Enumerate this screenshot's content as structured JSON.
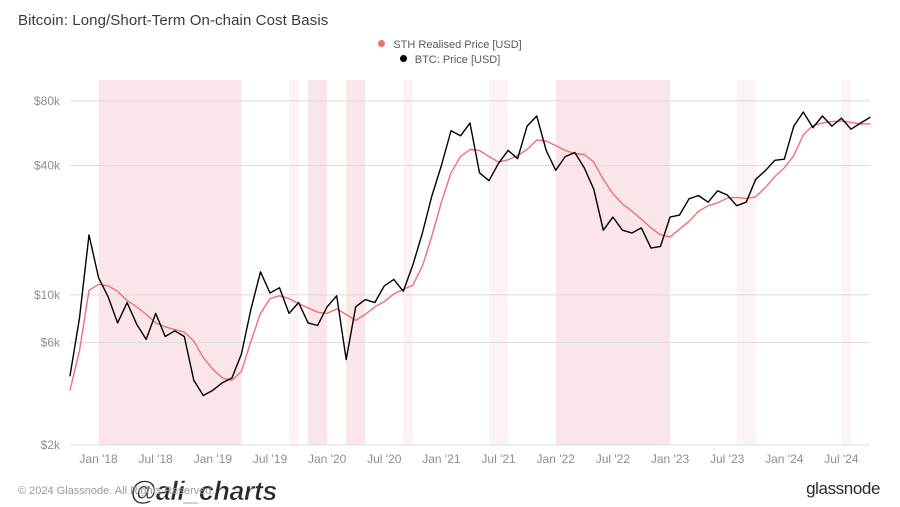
{
  "title": "Bitcoin: Long/Short-Term On-chain Cost Basis",
  "legend": {
    "sth": {
      "label": "STH Realised Price [USD]",
      "color": "#ef6f75"
    },
    "btc": {
      "label": "BTC: Price [USD]",
      "color": "#000000"
    }
  },
  "watermark": "@ali_charts",
  "footer_left": "© 2024 Glassnode. All Rights Reserved.",
  "footer_right": "glassnode",
  "chart": {
    "type": "line",
    "x_scale": "linear_time",
    "y_scale": "log",
    "background_color": "#ffffff",
    "grid_color": "#dcdcdc",
    "tick_label_color": "#8e8e8e",
    "title_fontsize": 15,
    "tick_fontsize": 12,
    "legend_fontsize": 11,
    "line_width": 1.4,
    "x_axis": {
      "domain": [
        "2017-10",
        "2024-10"
      ],
      "ticks": [
        {
          "t": "2018-01",
          "label": "Jan '18"
        },
        {
          "t": "2018-07",
          "label": "Jul '18"
        },
        {
          "t": "2019-01",
          "label": "Jan '19"
        },
        {
          "t": "2019-07",
          "label": "Jul '19"
        },
        {
          "t": "2020-01",
          "label": "Jan '20"
        },
        {
          "t": "2020-07",
          "label": "Jul '20"
        },
        {
          "t": "2021-01",
          "label": "Jan '21"
        },
        {
          "t": "2021-07",
          "label": "Jul '21"
        },
        {
          "t": "2022-01",
          "label": "Jan '22"
        },
        {
          "t": "2022-07",
          "label": "Jul '22"
        },
        {
          "t": "2023-01",
          "label": "Jan '23"
        },
        {
          "t": "2023-07",
          "label": "Jul '23"
        },
        {
          "t": "2024-01",
          "label": "Jan '24"
        },
        {
          "t": "2024-07",
          "label": "Jul '24"
        }
      ]
    },
    "y_axis": {
      "domain": [
        2000,
        100000
      ],
      "ticks": [
        {
          "v": 2000,
          "label": "$2k"
        },
        {
          "v": 6000,
          "label": "$6k"
        },
        {
          "v": 10000,
          "label": "$10k"
        },
        {
          "v": 40000,
          "label": "$40k"
        },
        {
          "v": 80000,
          "label": "$80k"
        }
      ]
    },
    "bands": [
      {
        "from": "2018-01",
        "to": "2019-04",
        "opacity": 0.22
      },
      {
        "from": "2019-09",
        "to": "2019-10",
        "opacity": 0.1
      },
      {
        "from": "2019-11",
        "to": "2020-01",
        "opacity": 0.22
      },
      {
        "from": "2020-03",
        "to": "2020-05",
        "opacity": 0.22
      },
      {
        "from": "2020-09",
        "to": "2020-10",
        "opacity": 0.1
      },
      {
        "from": "2021-06",
        "to": "2021-08",
        "opacity": 0.1
      },
      {
        "from": "2022-01",
        "to": "2023-01",
        "opacity": 0.22
      },
      {
        "from": "2023-08",
        "to": "2023-10",
        "opacity": 0.1
      },
      {
        "from": "2024-07",
        "to": "2024-08",
        "opacity": 0.1
      }
    ],
    "series": {
      "btc_price": {
        "label": "BTC: Price [USD]",
        "color": "#000000",
        "points": [
          [
            "2017-10",
            4200
          ],
          [
            "2017-11",
            7800
          ],
          [
            "2017-12",
            19000
          ],
          [
            "2018-01",
            12000
          ],
          [
            "2018-02",
            9800
          ],
          [
            "2018-03",
            7400
          ],
          [
            "2018-04",
            9200
          ],
          [
            "2018-05",
            7300
          ],
          [
            "2018-06",
            6200
          ],
          [
            "2018-07",
            8200
          ],
          [
            "2018-08",
            6400
          ],
          [
            "2018-09",
            6800
          ],
          [
            "2018-10",
            6400
          ],
          [
            "2018-11",
            4000
          ],
          [
            "2018-12",
            3400
          ],
          [
            "2019-01",
            3600
          ],
          [
            "2019-02",
            3900
          ],
          [
            "2019-03",
            4100
          ],
          [
            "2019-04",
            5300
          ],
          [
            "2019-05",
            8600
          ],
          [
            "2019-06",
            12800
          ],
          [
            "2019-07",
            10200
          ],
          [
            "2019-08",
            10800
          ],
          [
            "2019-09",
            8200
          ],
          [
            "2019-10",
            9200
          ],
          [
            "2019-11",
            7400
          ],
          [
            "2019-12",
            7200
          ],
          [
            "2020-01",
            8800
          ],
          [
            "2020-02",
            9900
          ],
          [
            "2020-03",
            5000
          ],
          [
            "2020-04",
            8800
          ],
          [
            "2020-05",
            9500
          ],
          [
            "2020-06",
            9200
          ],
          [
            "2020-07",
            11000
          ],
          [
            "2020-08",
            11800
          ],
          [
            "2020-09",
            10400
          ],
          [
            "2020-10",
            13800
          ],
          [
            "2020-11",
            19400
          ],
          [
            "2020-12",
            28900
          ],
          [
            "2021-01",
            40000
          ],
          [
            "2021-02",
            58000
          ],
          [
            "2021-03",
            55000
          ],
          [
            "2021-04",
            63000
          ],
          [
            "2021-05",
            37000
          ],
          [
            "2021-06",
            34000
          ],
          [
            "2021-07",
            41000
          ],
          [
            "2021-08",
            47000
          ],
          [
            "2021-09",
            43000
          ],
          [
            "2021-10",
            61000
          ],
          [
            "2021-11",
            68000
          ],
          [
            "2021-12",
            47000
          ],
          [
            "2022-01",
            38000
          ],
          [
            "2022-02",
            44000
          ],
          [
            "2022-03",
            46000
          ],
          [
            "2022-04",
            39000
          ],
          [
            "2022-05",
            31000
          ],
          [
            "2022-06",
            20000
          ],
          [
            "2022-07",
            23000
          ],
          [
            "2022-08",
            20000
          ],
          [
            "2022-09",
            19400
          ],
          [
            "2022-10",
            20500
          ],
          [
            "2022-11",
            16500
          ],
          [
            "2022-12",
            16800
          ],
          [
            "2023-01",
            23000
          ],
          [
            "2023-02",
            23500
          ],
          [
            "2023-03",
            28000
          ],
          [
            "2023-04",
            29000
          ],
          [
            "2023-05",
            27000
          ],
          [
            "2023-06",
            30500
          ],
          [
            "2023-07",
            29200
          ],
          [
            "2023-08",
            26000
          ],
          [
            "2023-09",
            27000
          ],
          [
            "2023-10",
            34500
          ],
          [
            "2023-11",
            37800
          ],
          [
            "2023-12",
            42300
          ],
          [
            "2024-01",
            42800
          ],
          [
            "2024-02",
            61000
          ],
          [
            "2024-03",
            71000
          ],
          [
            "2024-04",
            60000
          ],
          [
            "2024-05",
            68000
          ],
          [
            "2024-06",
            61000
          ],
          [
            "2024-07",
            66500
          ],
          [
            "2024-08",
            59000
          ],
          [
            "2024-09",
            63000
          ],
          [
            "2024-10",
            67000
          ]
        ]
      },
      "sth_realised": {
        "label": "STH Realised Price [USD]",
        "color": "#ef6f75",
        "points": [
          [
            "2017-10",
            3600
          ],
          [
            "2017-11",
            5500
          ],
          [
            "2017-12",
            10500
          ],
          [
            "2018-01",
            11200
          ],
          [
            "2018-02",
            11000
          ],
          [
            "2018-03",
            10400
          ],
          [
            "2018-04",
            9400
          ],
          [
            "2018-05",
            8800
          ],
          [
            "2018-06",
            8100
          ],
          [
            "2018-07",
            7400
          ],
          [
            "2018-08",
            7100
          ],
          [
            "2018-09",
            6900
          ],
          [
            "2018-10",
            6700
          ],
          [
            "2018-11",
            6100
          ],
          [
            "2018-12",
            5100
          ],
          [
            "2019-01",
            4500
          ],
          [
            "2019-02",
            4100
          ],
          [
            "2019-03",
            4000
          ],
          [
            "2019-04",
            4400
          ],
          [
            "2019-05",
            6100
          ],
          [
            "2019-06",
            8200
          ],
          [
            "2019-07",
            9600
          ],
          [
            "2019-08",
            9900
          ],
          [
            "2019-09",
            9600
          ],
          [
            "2019-10",
            9100
          ],
          [
            "2019-11",
            8700
          ],
          [
            "2019-12",
            8300
          ],
          [
            "2020-01",
            8200
          ],
          [
            "2020-02",
            8600
          ],
          [
            "2020-03",
            8100
          ],
          [
            "2020-04",
            7600
          ],
          [
            "2020-05",
            8100
          ],
          [
            "2020-06",
            8800
          ],
          [
            "2020-07",
            9300
          ],
          [
            "2020-08",
            10100
          ],
          [
            "2020-09",
            10600
          ],
          [
            "2020-10",
            11100
          ],
          [
            "2020-11",
            13600
          ],
          [
            "2020-12",
            18800
          ],
          [
            "2021-01",
            27000
          ],
          [
            "2021-02",
            37000
          ],
          [
            "2021-03",
            44000
          ],
          [
            "2021-04",
            47500
          ],
          [
            "2021-05",
            47000
          ],
          [
            "2021-06",
            44000
          ],
          [
            "2021-07",
            41500
          ],
          [
            "2021-08",
            42500
          ],
          [
            "2021-09",
            44500
          ],
          [
            "2021-10",
            47500
          ],
          [
            "2021-11",
            52500
          ],
          [
            "2021-12",
            52000
          ],
          [
            "2022-01",
            49500
          ],
          [
            "2022-02",
            47000
          ],
          [
            "2022-03",
            45500
          ],
          [
            "2022-04",
            45000
          ],
          [
            "2022-05",
            41500
          ],
          [
            "2022-06",
            34500
          ],
          [
            "2022-07",
            29500
          ],
          [
            "2022-08",
            26500
          ],
          [
            "2022-09",
            24500
          ],
          [
            "2022-10",
            22500
          ],
          [
            "2022-11",
            20500
          ],
          [
            "2022-12",
            19000
          ],
          [
            "2023-01",
            18600
          ],
          [
            "2023-02",
            20200
          ],
          [
            "2023-03",
            22000
          ],
          [
            "2023-04",
            24500
          ],
          [
            "2023-05",
            26000
          ],
          [
            "2023-06",
            26800
          ],
          [
            "2023-07",
            28200
          ],
          [
            "2023-08",
            28400
          ],
          [
            "2023-09",
            28100
          ],
          [
            "2023-10",
            28600
          ],
          [
            "2023-11",
            31500
          ],
          [
            "2023-12",
            35500
          ],
          [
            "2024-01",
            39000
          ],
          [
            "2024-02",
            44500
          ],
          [
            "2024-03",
            55500
          ],
          [
            "2024-04",
            61500
          ],
          [
            "2024-05",
            63000
          ],
          [
            "2024-06",
            64000
          ],
          [
            "2024-07",
            64500
          ],
          [
            "2024-08",
            63500
          ],
          [
            "2024-09",
            62500
          ],
          [
            "2024-10",
            62500
          ]
        ]
      }
    }
  }
}
